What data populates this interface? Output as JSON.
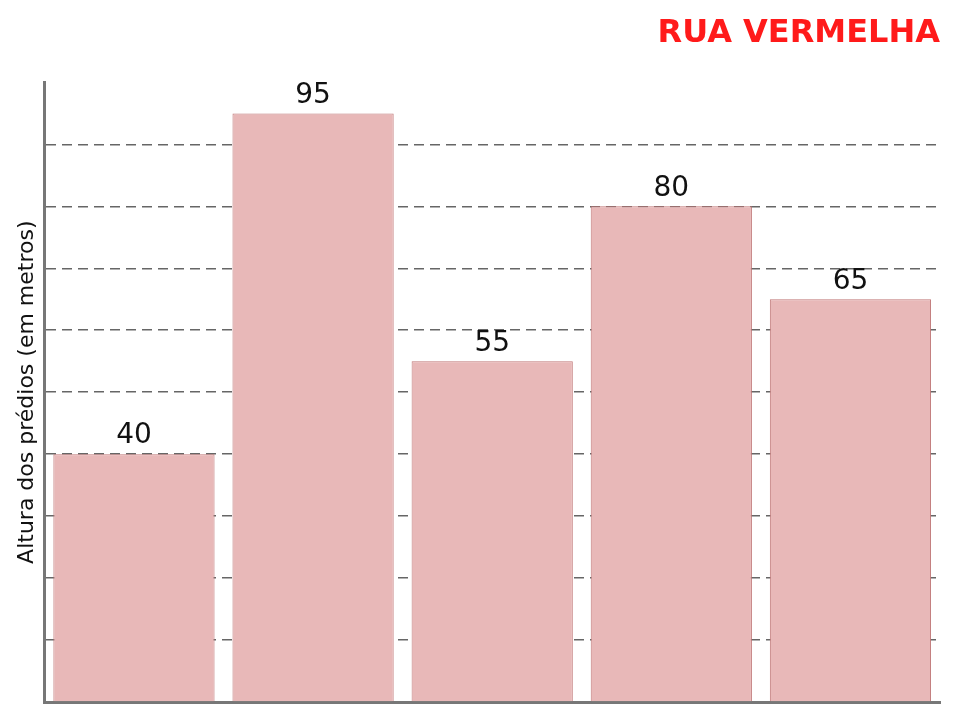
{
  "chart_data": {
    "type": "bar",
    "title": "RUA VERMELHA",
    "y_label": "Altura dos prédios (em metros)",
    "categories": [
      null,
      null,
      null,
      null,
      null
    ],
    "values": [
      40,
      95,
      55,
      80,
      65
    ],
    "color": "#e8b8b8",
    "ylim": [
      0,
      100
    ],
    "yticks": [
      0,
      10,
      20,
      30,
      40,
      50,
      60,
      70,
      80,
      90
    ],
    "grid": true,
    "data_labels": true,
    "tick_labels": false
  }
}
